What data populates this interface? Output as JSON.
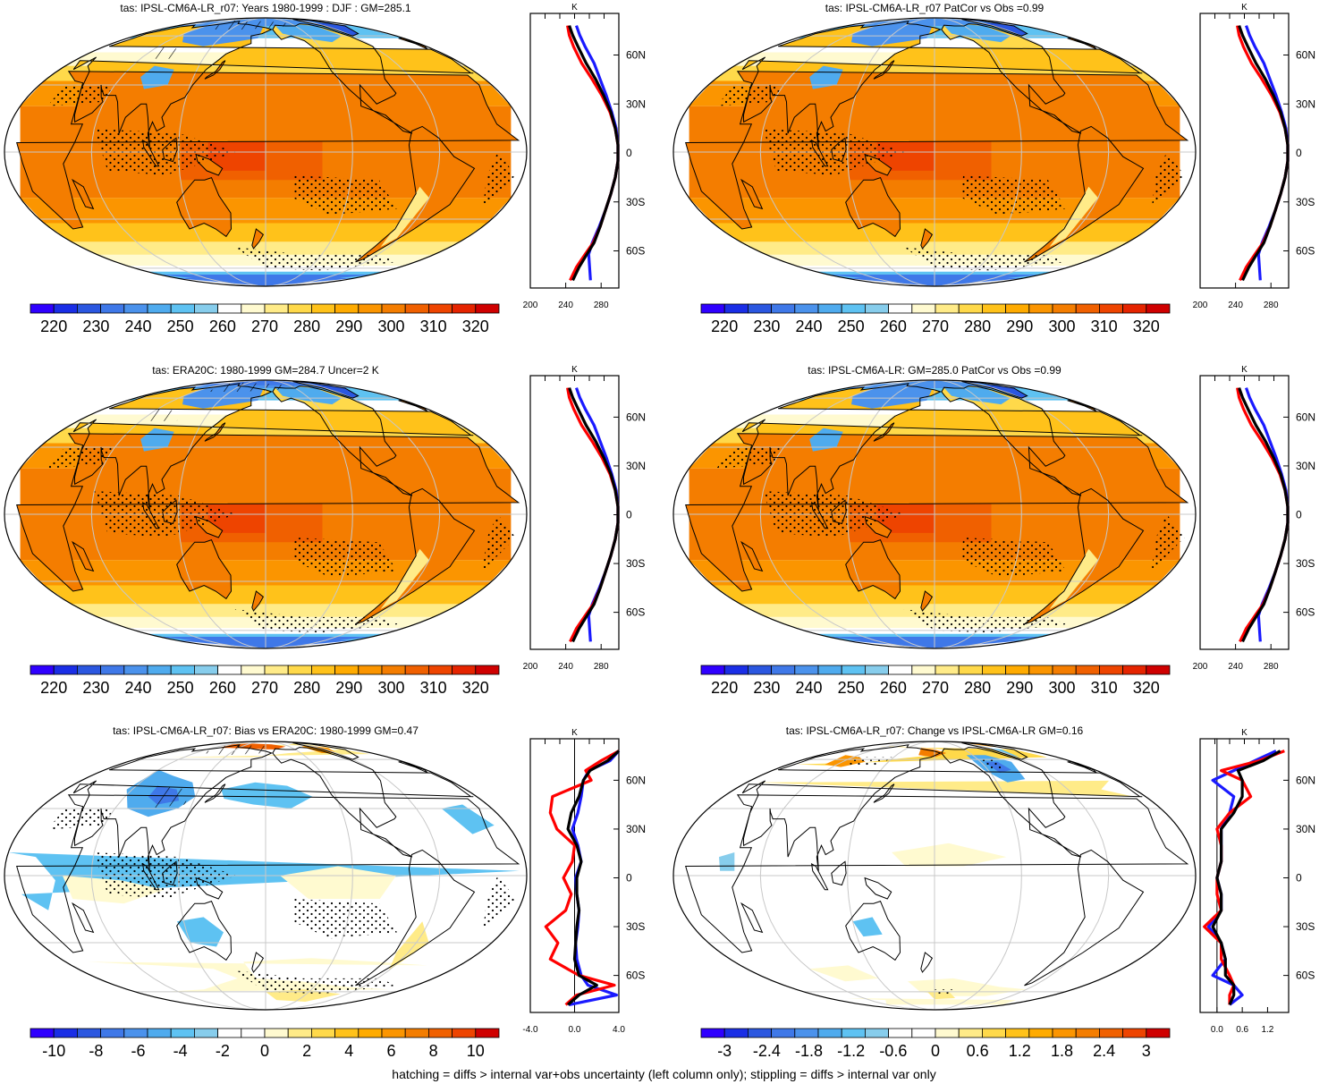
{
  "footer": "hatching = diffs > internal var+obs uncertainty (left column only); stippling = diffs > internal var only",
  "colors": {
    "abs_scale": [
      "#2f00ff",
      "#1a2ee6",
      "#2b57e0",
      "#3f78e8",
      "#4b92ec",
      "#4fabee",
      "#5ec2f2",
      "#87cdec",
      "#ffffff",
      "#fffad0",
      "#ffeb88",
      "#ffd94a",
      "#ffc21a",
      "#ffab00",
      "#fb9500",
      "#f47d00",
      "#f06000",
      "#ee4400",
      "#e52400",
      "#cf0000"
    ],
    "diff_scale": [
      "#2f00ff",
      "#1a2ee6",
      "#2b57e0",
      "#3f78e8",
      "#4b92ec",
      "#4fabee",
      "#5ec2f2",
      "#87cdec",
      "#ffffff",
      "#ffffff",
      "#fffad0",
      "#ffeb88",
      "#ffd94a",
      "#ffc21a",
      "#ffab00",
      "#fb9500",
      "#f47d00",
      "#f06000",
      "#ee4400",
      "#cf0000"
    ],
    "profile_blue": "#1a1aff",
    "profile_red": "#ff0000",
    "profile_black": "#000000",
    "land_outline": "#000000",
    "graticule": "#c8c8c8"
  },
  "chart_data": [
    {
      "type": "heatmap",
      "panel": "model-climatology",
      "title": "tas: IPSL-CM6A-LR_r07: Years 1980-1999 : DJF : GM=285.1",
      "colorbar": {
        "ticks": [
          "220",
          "230",
          "240",
          "250",
          "260",
          "270",
          "280",
          "290",
          "300",
          "310",
          "320"
        ],
        "scale": "abs"
      },
      "field": "absolute",
      "hatching": true,
      "stippling": true,
      "profile": {
        "units": "K",
        "xticks": [
          "200",
          "240",
          "280"
        ],
        "xlim": [
          200,
          300
        ],
        "yticks": [
          "60N",
          "30N",
          "0",
          "30S",
          "60S"
        ],
        "lat": [
          -78,
          -70,
          -62,
          -55,
          -45,
          -35,
          -25,
          -15,
          -5,
          5,
          15,
          25,
          35,
          45,
          55,
          65,
          72,
          78
        ],
        "series": [
          {
            "color": "blue",
            "values": [
              268,
              267,
              266,
              270,
              278,
              285,
              291,
              296,
              299,
              299,
              297,
              292,
              286,
              279,
              272,
              262,
              256,
              252
            ]
          },
          {
            "color": "red",
            "values": [
              245,
              252,
              262,
              271,
              279,
              285,
              291,
              296,
              299,
              299,
              296,
              290,
              281,
              270,
              258,
              249,
              244,
              242
            ]
          },
          {
            "color": "black",
            "values": [
              248,
              255,
              264,
              272,
              279,
              285,
              291,
              296,
              299,
              299,
              296,
              291,
              283,
              274,
              263,
              254,
              248,
              244
            ]
          }
        ]
      }
    },
    {
      "type": "heatmap",
      "panel": "obs-pattern",
      "title": "tas: IPSL-CM6A-LR_r07 PatCor vs Obs =0.99",
      "colorbar": {
        "ticks": [
          "220",
          "230",
          "240",
          "250",
          "260",
          "270",
          "280",
          "290",
          "300",
          "310",
          "320"
        ],
        "scale": "abs"
      },
      "field": "absolute",
      "hatching": false,
      "stippling": true,
      "profile": {
        "units": "K",
        "xticks": [
          "200",
          "240",
          "280"
        ],
        "xlim": [
          200,
          300
        ],
        "yticks": [
          "60N",
          "30N",
          "0",
          "30S",
          "60S"
        ],
        "lat": [
          -78,
          -70,
          -62,
          -55,
          -45,
          -35,
          -25,
          -15,
          -5,
          5,
          15,
          25,
          35,
          45,
          55,
          65,
          72,
          78
        ],
        "series": [
          {
            "color": "blue",
            "values": [
              268,
              267,
              266,
              270,
              278,
              285,
              291,
              296,
              299,
              299,
              297,
              292,
              286,
              279,
              272,
              262,
              256,
              252
            ]
          },
          {
            "color": "red",
            "values": [
              245,
              252,
              262,
              271,
              279,
              285,
              291,
              296,
              299,
              299,
              296,
              290,
              281,
              270,
              258,
              249,
              244,
              242
            ]
          },
          {
            "color": "black",
            "values": [
              248,
              255,
              264,
              272,
              279,
              285,
              291,
              296,
              299,
              299,
              296,
              291,
              283,
              274,
              263,
              254,
              248,
              244
            ]
          }
        ]
      }
    },
    {
      "type": "heatmap",
      "panel": "obs-climatology",
      "title": "tas: ERA20C: 1980-1999 GM=284.7 Uncer=2 K",
      "colorbar": {
        "ticks": [
          "220",
          "230",
          "240",
          "250",
          "260",
          "270",
          "280",
          "290",
          "300",
          "310",
          "320"
        ],
        "scale": "abs"
      },
      "field": "absolute",
      "hatching": true,
      "stippling": true,
      "profile": {
        "units": "K",
        "xticks": [
          "200",
          "240",
          "280"
        ],
        "xlim": [
          200,
          300
        ],
        "yticks": [
          "60N",
          "30N",
          "0",
          "30S",
          "60S"
        ],
        "lat": [
          -78,
          -70,
          -62,
          -55,
          -45,
          -35,
          -25,
          -15,
          -5,
          5,
          15,
          25,
          35,
          45,
          55,
          65,
          72,
          78
        ],
        "series": [
          {
            "color": "blue",
            "values": [
              268,
              267,
              266,
              270,
              278,
              285,
              291,
              296,
              299,
              299,
              297,
              292,
              286,
              279,
              272,
              262,
              256,
              252
            ]
          },
          {
            "color": "red",
            "values": [
              245,
              252,
              262,
              271,
              279,
              285,
              291,
              296,
              299,
              299,
              296,
              290,
              281,
              270,
              258,
              249,
              244,
              242
            ]
          },
          {
            "color": "black",
            "values": [
              248,
              255,
              264,
              272,
              279,
              285,
              291,
              296,
              299,
              299,
              296,
              291,
              283,
              274,
              263,
              254,
              248,
              244
            ]
          }
        ]
      }
    },
    {
      "type": "heatmap",
      "panel": "ensemble-climatology",
      "title": "tas: IPSL-CM6A-LR: GM=285.0 PatCor vs Obs =0.99",
      "colorbar": {
        "ticks": [
          "220",
          "230",
          "240",
          "250",
          "260",
          "270",
          "280",
          "290",
          "300",
          "310",
          "320"
        ],
        "scale": "abs"
      },
      "field": "absolute",
      "hatching": false,
      "stippling": true,
      "profile": {
        "units": "K",
        "xticks": [
          "200",
          "240",
          "280"
        ],
        "xlim": [
          200,
          300
        ],
        "yticks": [
          "60N",
          "30N",
          "0",
          "30S",
          "60S"
        ],
        "lat": [
          -78,
          -70,
          -62,
          -55,
          -45,
          -35,
          -25,
          -15,
          -5,
          5,
          15,
          25,
          35,
          45,
          55,
          65,
          72,
          78
        ],
        "series": [
          {
            "color": "blue",
            "values": [
              268,
              267,
              266,
              270,
              278,
              285,
              291,
              296,
              299,
              299,
              297,
              292,
              286,
              279,
              272,
              262,
              256,
              252
            ]
          },
          {
            "color": "red",
            "values": [
              245,
              252,
              262,
              271,
              279,
              285,
              291,
              296,
              299,
              299,
              296,
              290,
              281,
              270,
              258,
              249,
              244,
              242
            ]
          },
          {
            "color": "black",
            "values": [
              248,
              255,
              264,
              272,
              279,
              285,
              291,
              296,
              299,
              299,
              296,
              291,
              283,
              274,
              263,
              254,
              248,
              244
            ]
          }
        ]
      }
    },
    {
      "type": "heatmap",
      "panel": "bias",
      "title": "tas: IPSL-CM6A-LR_r07: Bias vs ERA20C: 1980-1999 GM=0.47",
      "colorbar": {
        "ticks": [
          "-10",
          "-8",
          "-6",
          "-4",
          "-2",
          "0",
          "2",
          "4",
          "6",
          "8",
          "10"
        ],
        "scale": "diff"
      },
      "field": "bias",
      "hatching": true,
      "stippling": true,
      "profile": {
        "units": "K",
        "xticks": [
          "-4.0",
          "0.0",
          "4.0"
        ],
        "xlim": [
          -4,
          4
        ],
        "yticks": [
          "60N",
          "30N",
          "0",
          "30S",
          "60S"
        ],
        "lat": [
          -78,
          -72,
          -66,
          -60,
          -50,
          -40,
          -30,
          -20,
          -10,
          0,
          10,
          20,
          30,
          40,
          50,
          60,
          66,
          72,
          78
        ],
        "series": [
          {
            "color": "blue",
            "values": [
              -0.5,
              3.8,
              1.2,
              0.6,
              0.2,
              0.1,
              0.3,
              0.4,
              0.2,
              0.1,
              0.6,
              0.3,
              -0.2,
              0.3,
              0.6,
              0.8,
              1.3,
              3.2,
              4.0
            ]
          },
          {
            "color": "red",
            "values": [
              -0.8,
              0.2,
              3.6,
              0.4,
              -2.2,
              -1.5,
              -2.6,
              -0.8,
              -0.3,
              -1.0,
              -0.2,
              0.0,
              -1.6,
              -2.2,
              -2.0,
              1.5,
              1.0,
              2.4,
              4.0
            ]
          },
          {
            "color": "black",
            "values": [
              -0.6,
              0.4,
              2.0,
              0.4,
              0.0,
              0.1,
              0.2,
              0.4,
              0.2,
              0.2,
              0.6,
              0.2,
              -0.6,
              -0.3,
              0.4,
              0.8,
              1.4,
              3.0,
              4.0
            ]
          }
        ]
      }
    },
    {
      "type": "heatmap",
      "panel": "change",
      "title": "tas: IPSL-CM6A-LR_r07: Change vs IPSL-CM6A-LR GM=0.16",
      "colorbar": {
        "ticks": [
          "-3",
          "-2.4",
          "-1.8",
          "-1.2",
          "-0.6",
          "0",
          "0.6",
          "1.2",
          "1.8",
          "2.4",
          "3"
        ],
        "scale": "diff"
      },
      "field": "change",
      "hatching": false,
      "stippling": true,
      "profile": {
        "units": "K",
        "xticks": [
          "0.0",
          "0.6",
          "1.2"
        ],
        "xlim": [
          -0.4,
          1.7
        ],
        "yticks": [
          "60N",
          "30N",
          "0",
          "30S",
          "60S"
        ],
        "lat": [
          -78,
          -72,
          -66,
          -60,
          -50,
          -40,
          -30,
          -20,
          -10,
          0,
          10,
          20,
          30,
          40,
          50,
          60,
          66,
          72,
          78
        ],
        "series": [
          {
            "color": "blue",
            "values": [
              0.3,
              0.6,
              0.4,
              -0.1,
              0.2,
              0.1,
              -0.2,
              0.1,
              0.1,
              0.0,
              0.1,
              0.1,
              0.1,
              0.3,
              0.4,
              -0.1,
              0.4,
              0.9,
              1.4
            ]
          },
          {
            "color": "red",
            "values": [
              0.3,
              0.3,
              0.4,
              0.3,
              0.1,
              0.1,
              -0.3,
              0.1,
              0.0,
              0.0,
              0.1,
              0.1,
              0.0,
              0.3,
              0.8,
              0.6,
              0.1,
              1.0,
              1.6
            ]
          },
          {
            "color": "black",
            "values": [
              0.3,
              0.4,
              0.4,
              0.2,
              0.2,
              0.1,
              -0.1,
              0.1,
              0.1,
              0.0,
              0.1,
              0.1,
              0.1,
              0.4,
              0.6,
              0.6,
              0.5,
              1.1,
              1.5
            ]
          }
        ]
      }
    }
  ]
}
